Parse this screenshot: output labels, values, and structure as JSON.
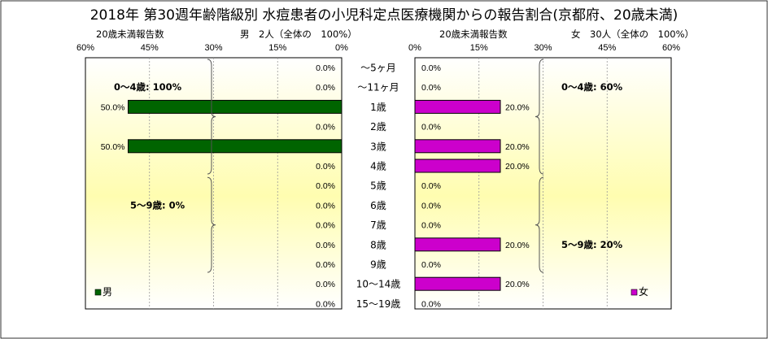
{
  "chart_data": {
    "type": "bar",
    "title": "2018年 第30週年齢階級別 水痘患者の小児科定点医療機関からの報告割合(京都府、20歳未満)",
    "categories": [
      "～5ヶ月",
      "～11ヶ月",
      "1歳",
      "2歳",
      "3歳",
      "4歳",
      "5歳",
      "6歳",
      "7歳",
      "8歳",
      "9歳",
      "10～14歳",
      "15～19歳"
    ],
    "axis_ticks": [
      "60%",
      "45%",
      "30%",
      "15%",
      "0%"
    ],
    "axis_ticks_right": [
      "0%",
      "15%",
      "30%",
      "45%",
      "60%"
    ],
    "xlim": [
      0,
      60
    ],
    "panels": [
      {
        "side": "left",
        "header": "20歳未満報告数",
        "group_label": "男　2人（全体の　100%）",
        "series": [
          {
            "name": "男",
            "color": "#006400",
            "values": [
              0,
              0,
              50,
              0,
              50,
              0,
              0,
              0,
              0,
              0,
              0,
              0,
              0
            ],
            "labels": [
              "0.0%",
              "0.0%",
              "50.0%",
              "0.0%",
              "50.0%",
              "0.0%",
              "0.0%",
              "0.0%",
              "0.0%",
              "0.0%",
              "0.0%",
              "0.0%",
              "0.0%"
            ]
          }
        ],
        "annotations": [
          "0～4歳: 100%",
          "5～9歳: 0%"
        ]
      },
      {
        "side": "right",
        "header": "20歳未満報告数",
        "group_label": "女　30人（全体の　100%）",
        "series": [
          {
            "name": "女",
            "color": "#cc00cc",
            "values": [
              0,
              0,
              20,
              0,
              20,
              20,
              0,
              0,
              0,
              20,
              0,
              20,
              0
            ],
            "labels": [
              "0.0%",
              "0.0%",
              "20.0%",
              "0.0%",
              "20.0%",
              "20.0%",
              "0.0%",
              "0.0%",
              "0.0%",
              "20.0%",
              "0.0%",
              "20.0%",
              "0.0%"
            ]
          }
        ],
        "annotations": [
          "0～4歳: 60%",
          "5～9歳: 20%"
        ]
      }
    ]
  }
}
